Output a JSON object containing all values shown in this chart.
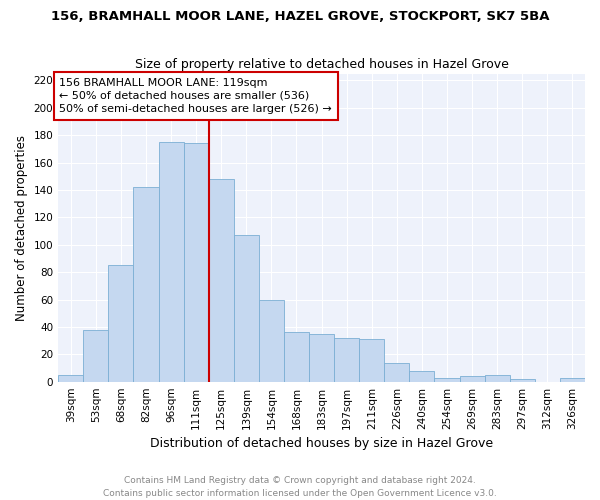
{
  "title": "156, BRAMHALL MOOR LANE, HAZEL GROVE, STOCKPORT, SK7 5BA",
  "subtitle": "Size of property relative to detached houses in Hazel Grove",
  "xlabel": "Distribution of detached houses by size in Hazel Grove",
  "ylabel": "Number of detached properties",
  "categories": [
    "39sqm",
    "53sqm",
    "68sqm",
    "82sqm",
    "96sqm",
    "111sqm",
    "125sqm",
    "139sqm",
    "154sqm",
    "168sqm",
    "183sqm",
    "197sqm",
    "211sqm",
    "226sqm",
    "240sqm",
    "254sqm",
    "269sqm",
    "283sqm",
    "297sqm",
    "312sqm",
    "326sqm"
  ],
  "values": [
    5,
    38,
    85,
    142,
    175,
    174,
    148,
    107,
    60,
    36,
    35,
    32,
    31,
    14,
    8,
    3,
    4,
    5,
    2,
    0,
    3
  ],
  "bar_color": "#c5d8f0",
  "bar_edge_color": "#7bafd4",
  "property_line_label": "156 BRAMHALL MOOR LANE: 119sqm",
  "annotation_line1": "← 50% of detached houses are smaller (536)",
  "annotation_line2": "50% of semi-detached houses are larger (526) →",
  "annotation_box_color": "#ffffff",
  "annotation_box_edge_color": "#cc0000",
  "vline_color": "#cc0000",
  "vline_index": 6,
  "ylim": [
    0,
    225
  ],
  "yticks": [
    0,
    20,
    40,
    60,
    80,
    100,
    120,
    140,
    160,
    180,
    200,
    220
  ],
  "footer_line1": "Contains HM Land Registry data © Crown copyright and database right 2024.",
  "footer_line2": "Contains public sector information licensed under the Open Government Licence v3.0.",
  "background_color": "#eef2fb",
  "grid_color": "#ffffff",
  "fig_background": "#ffffff",
  "title_fontsize": 9.5,
  "subtitle_fontsize": 9,
  "ylabel_fontsize": 8.5,
  "xlabel_fontsize": 9,
  "tick_fontsize": 7.5,
  "footer_fontsize": 6.5,
  "annotation_fontsize": 8
}
